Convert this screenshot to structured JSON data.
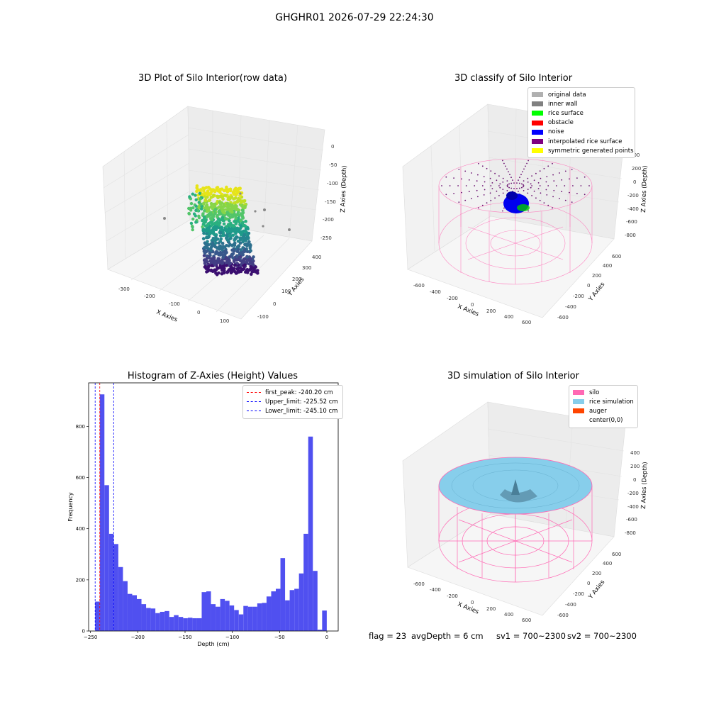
{
  "suptitle": "GHGHR01 2026-07-29 22:24:30",
  "panel_tl": {
    "title": "3D Plot of Silo Interior(row data)",
    "xlabel": "X Axies",
    "ylabel": "Y Axies",
    "zlabel": "Z Axies (Depth)",
    "x_ticks": [
      "-300",
      "-200",
      "-100",
      "0",
      "100"
    ],
    "y_ticks": [
      "-100",
      "0",
      "100",
      "200",
      "300",
      "400"
    ],
    "z_ticks": [
      "0",
      "-50",
      "-100",
      "-150",
      "-200",
      "-250"
    ]
  },
  "panel_tr": {
    "title": "3D classify of Silo Interior",
    "xlabel": "X Axies",
    "ylabel": "Y Axies",
    "zlabel": "Z Axies (Depth)",
    "x_ticks": [
      "-600",
      "-400",
      "-200",
      "0",
      "200",
      "400",
      "600"
    ],
    "y_ticks": [
      "-600",
      "-400",
      "-200",
      "0",
      "200",
      "400",
      "600"
    ],
    "z_ticks": [
      "200",
      "0",
      "-200",
      "-400",
      "-600",
      "-800"
    ],
    "legend": [
      {
        "label": "original data",
        "color": "#b0b0b0"
      },
      {
        "label": "inner wall",
        "color": "#808080"
      },
      {
        "label": "rice surface",
        "color": "#00ff00"
      },
      {
        "label": "obstacle",
        "color": "#ff0000"
      },
      {
        "label": "noise",
        "color": "#0000ff"
      },
      {
        "label": "interpolated rice surface",
        "color": "#800080"
      },
      {
        "label": "symmetric generated points",
        "color": "#ffff00"
      }
    ]
  },
  "panel_bl": {
    "title": "Histogram of Z-Axies (Height) Values",
    "legend": [
      {
        "label": "first_peak: -240.20 cm",
        "color": "#ff0000"
      },
      {
        "label": "Upper_limit: -225.52 cm",
        "color": "#0000ff"
      },
      {
        "label": "Lower_limit: -245.10 cm",
        "color": "#0000ff"
      }
    ]
  },
  "panel_br": {
    "title": "3D simulation of Silo Interior",
    "xlabel": "X Axies",
    "ylabel": "Y Axies",
    "zlabel": "Z Axies (Depth)",
    "x_ticks": [
      "-600",
      "-400",
      "-200",
      "0",
      "200",
      "400",
      "600"
    ],
    "y_ticks": [
      "-600",
      "-400",
      "-200",
      "0",
      "200",
      "400",
      "600"
    ],
    "z_ticks": [
      "400",
      "200",
      "0",
      "-200",
      "-400",
      "-600",
      "-800"
    ],
    "legend": [
      {
        "label": "silo",
        "color": "#ff69b4"
      },
      {
        "label": "rice simulation",
        "color": "#87ceeb"
      },
      {
        "label": "auger",
        "color": "#ff4500"
      },
      {
        "label": "center(0,0)",
        "color": "#ffffff"
      }
    ]
  },
  "footer": {
    "flag": "flag = 23",
    "avg_depth": "avgDepth = 6 cm",
    "sv1": "sv1 = 700~2300",
    "sv2": "sv2 = 700~2300"
  },
  "chart_data": {
    "type": "bar",
    "title": "Histogram of Z-Axies (Height) Values",
    "xlabel": "Depth (cm)",
    "ylabel": "Frequency",
    "xlim": [
      -252,
      12
    ],
    "ylim": [
      0,
      970
    ],
    "xticks": [
      -250,
      -200,
      -150,
      -100,
      -50,
      0
    ],
    "yticks": [
      0,
      200,
      400,
      600,
      800
    ],
    "bar_color": "#5050f0",
    "bin_start": -245.1,
    "bin_width": 4.9,
    "values": [
      115,
      925,
      570,
      380,
      340,
      250,
      195,
      145,
      140,
      125,
      105,
      90,
      88,
      70,
      75,
      78,
      55,
      62,
      55,
      50,
      52,
      50,
      50,
      152,
      155,
      105,
      95,
      125,
      118,
      100,
      82,
      65,
      98,
      95,
      95,
      108,
      110,
      135,
      155,
      165,
      285,
      120,
      160,
      165,
      225,
      380,
      760,
      235,
      5,
      80
    ],
    "vlines": [
      {
        "label": "first_peak: -240.20 cm",
        "x": -240.2,
        "color": "#ff0000"
      },
      {
        "label": "Upper_limit: -225.52 cm",
        "x": -225.52,
        "color": "#0000ff"
      },
      {
        "label": "Lower_limit: -245.10 cm",
        "x": -245.1,
        "color": "#0000ff"
      }
    ]
  }
}
